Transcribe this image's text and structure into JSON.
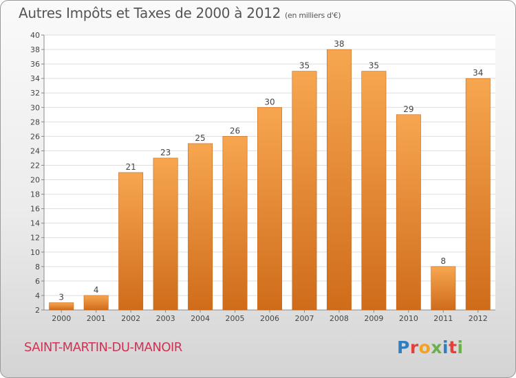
{
  "chart_data": {
    "type": "bar",
    "title": "Autres Impôts et Taxes de 2000 à 2012",
    "subtitle": "(en milliers d'€)",
    "categories": [
      "2000",
      "2001",
      "2002",
      "2003",
      "2004",
      "2005",
      "2006",
      "2007",
      "2008",
      "2009",
      "2010",
      "2011",
      "2012"
    ],
    "values": [
      3,
      4,
      21,
      23,
      25,
      26,
      30,
      35,
      38,
      35,
      29,
      8,
      34
    ],
    "ylim": [
      2,
      40
    ],
    "yticks": [
      2,
      4,
      6,
      8,
      10,
      12,
      14,
      16,
      18,
      20,
      22,
      24,
      26,
      28,
      30,
      32,
      34,
      36,
      38,
      40
    ],
    "grid": true,
    "bar_color": "#f0953e",
    "data_labels": true
  },
  "footer": {
    "place_name": "SAINT-MARTIN-DU-MANOIR",
    "logo_text": "Proxiti",
    "logo_letters": [
      "P",
      "r",
      "o",
      "x",
      "i",
      "t",
      "i"
    ],
    "logo_colors": [
      "#2d7fc1",
      "#e3403a",
      "#f3a21d",
      "#6ab04c",
      "#2d7fc1",
      "#e3403a",
      "#6ab04c"
    ]
  }
}
